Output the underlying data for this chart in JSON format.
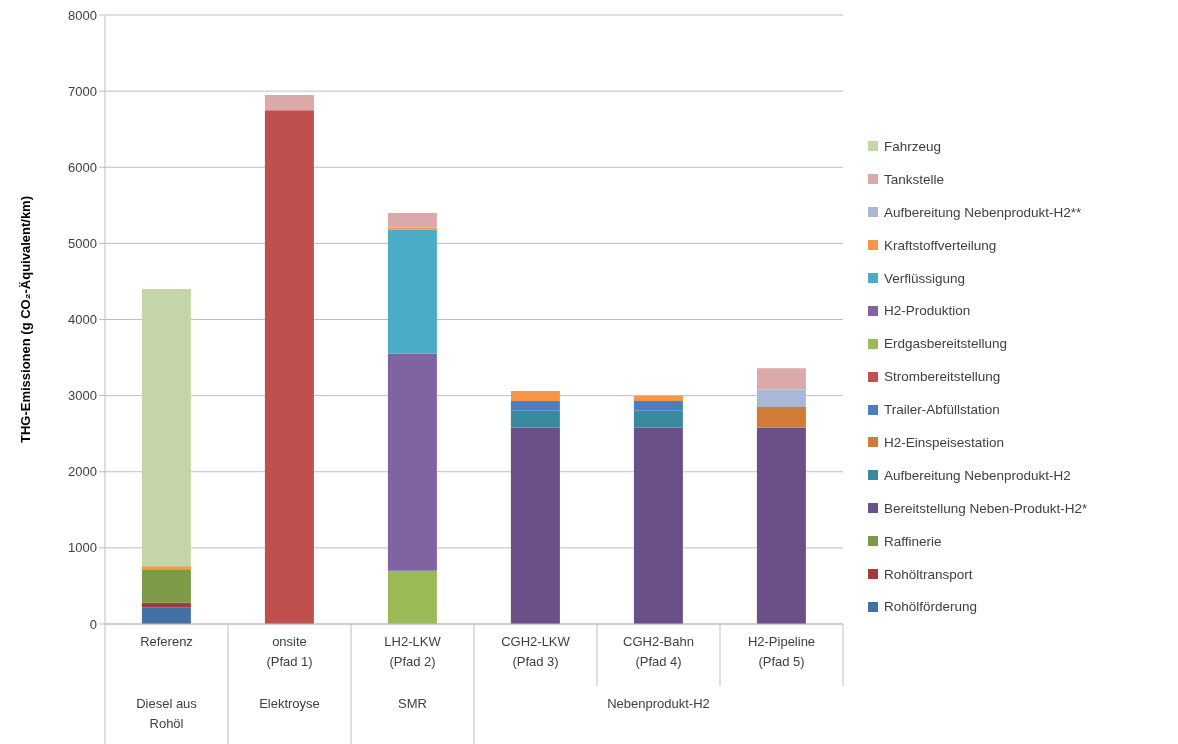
{
  "chart_data": {
    "type": "bar",
    "stacked": true,
    "ylabel": "THG-Emissionen (g CO₂-Äquivalent/km)",
    "categories": [
      "Referenz",
      "onsite (Pfad 1)",
      "LH2-LKW (Pfad 2)",
      "CGH2-LKW (Pfad 3)",
      "CGH2-Bahn (Pfad 4)",
      "H2-Pipeline (Pfad 5)"
    ],
    "series": [
      {
        "name": "Rohölförderung",
        "color": "#4471a4",
        "values": [
          220,
          null,
          null,
          null,
          null,
          null
        ]
      },
      {
        "name": "Rohöltransport",
        "color": "#a33b3a",
        "values": [
          60,
          null,
          null,
          null,
          null,
          null
        ]
      },
      {
        "name": "Raffinerie",
        "color": "#7d9a47",
        "values": [
          430,
          null,
          null,
          null,
          null,
          null
        ]
      },
      {
        "name": "Bereitstellung Neben-Produkt-H2*",
        "color": "#6a5088",
        "values": [
          null,
          null,
          null,
          2580,
          2580,
          2580
        ]
      },
      {
        "name": "Aufbereitung Nebenprodukt-H2",
        "color": "#3a8a9f",
        "values": [
          null,
          null,
          null,
          220,
          220,
          null
        ]
      },
      {
        "name": "H2-Einspeisestation",
        "color": "#d07b38",
        "values": [
          null,
          null,
          null,
          null,
          null,
          270
        ]
      },
      {
        "name": "Trailer-Abfüllstation",
        "color": "#4b7fc2",
        "values": [
          null,
          null,
          null,
          130,
          130,
          null
        ]
      },
      {
        "name": "Strombereitstellung",
        "color": "#c0504d",
        "values": [
          null,
          6750,
          null,
          null,
          null,
          null
        ]
      },
      {
        "name": "Erdgasbereitstellung",
        "color": "#9bbb59",
        "values": [
          null,
          null,
          700,
          null,
          null,
          null
        ]
      },
      {
        "name": "H2-Produktion",
        "color": "#8064a2",
        "values": [
          null,
          null,
          2850,
          null,
          null,
          null
        ]
      },
      {
        "name": "Verflüssigung",
        "color": "#4bacc6",
        "values": [
          null,
          null,
          1630,
          null,
          null,
          null
        ]
      },
      {
        "name": "Kraftstoffverteilung",
        "color": "#f79646",
        "values": [
          50,
          null,
          30,
          130,
          70,
          null
        ]
      },
      {
        "name": "Aufbereitung Nebenprodukt-H2**",
        "color": "#a8b9d8",
        "values": [
          null,
          null,
          null,
          null,
          null,
          230
        ]
      },
      {
        "name": "Tankstelle",
        "color": "#dba9a9",
        "values": [
          null,
          200,
          190,
          null,
          null,
          280
        ]
      },
      {
        "name": "Fahrzeug",
        "color": "#c4d5aa",
        "values": [
          3640,
          null,
          null,
          null,
          null,
          null
        ]
      }
    ],
    "ylim": [
      0,
      8000
    ],
    "yticks": [
      0,
      1000,
      2000,
      3000,
      4000,
      5000,
      6000,
      7000,
      8000
    ],
    "grid": "y",
    "legend": "right",
    "annotations": [
      "Diesel aus Rohöl",
      "Elektroyse",
      "SMR",
      "Nebenprodukt-H2"
    ]
  }
}
